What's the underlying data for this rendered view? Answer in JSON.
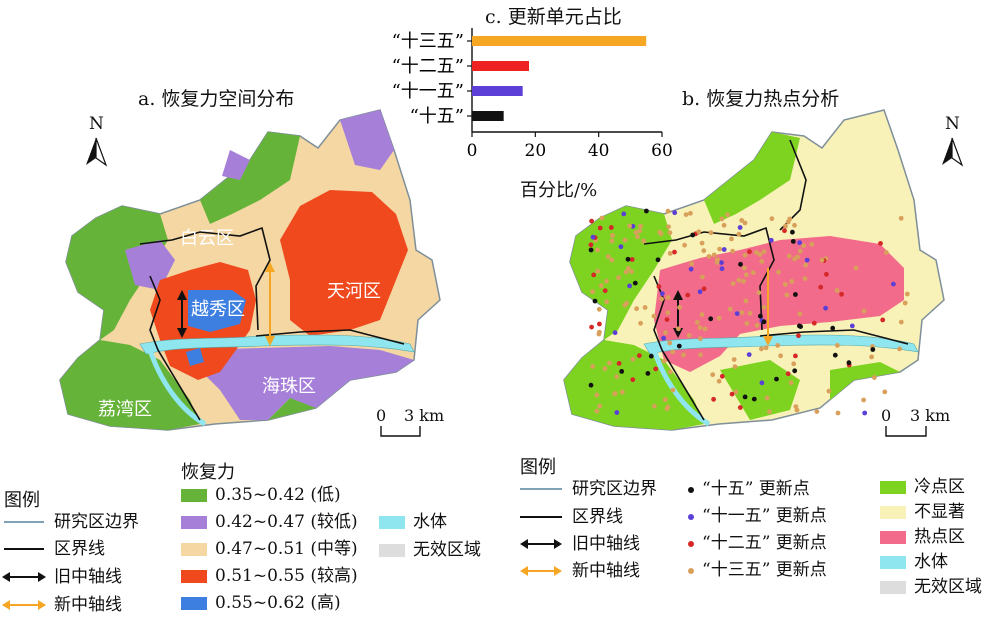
{
  "map_a": {
    "title": "a. 恢复力空间分布",
    "north": "N",
    "districts": {
      "baiyun": "白云区",
      "yuexiu": "越秀区",
      "tianhe": "天河区",
      "haizhu": "海珠区",
      "liwan": "荔湾区"
    },
    "scale": {
      "zero": "0",
      "label": "3 km"
    }
  },
  "map_b": {
    "title": "b. 恢复力热点分析",
    "north": "N",
    "scale": {
      "zero": "0",
      "label": "3 km"
    }
  },
  "chart_data": {
    "type": "bar",
    "orientation": "horizontal",
    "title": "c. 更新单元占比",
    "xlabel": "百分比/%",
    "categories": [
      "“十三五”",
      "“十二五”",
      "“十一五”",
      "“十五”"
    ],
    "values": [
      55,
      18,
      16,
      10
    ],
    "colors": [
      "#F5A623",
      "#EE2222",
      "#5B3FD6",
      "#111111"
    ],
    "xlim": [
      0,
      60
    ],
    "xticks": [
      "0",
      "20",
      "40",
      "60"
    ]
  },
  "legend_left": {
    "header": "图例",
    "items": [
      "研究区边界",
      "区界线",
      "旧中轴线",
      "新中轴线"
    ]
  },
  "legend_resilience": {
    "header": "恢复力",
    "items": [
      {
        "label": "0.35~0.42 (低)",
        "color": "#66B339"
      },
      {
        "label": "0.42~0.47 (较低)",
        "color": "#A67FD9"
      },
      {
        "label": "0.47~0.51 (中等)",
        "color": "#F4D7A3"
      },
      {
        "label": "0.51~0.55 (较高)",
        "color": "#F0491E"
      },
      {
        "label": "0.55~0.62 (高)",
        "color": "#3D7FE0"
      }
    ],
    "extra": [
      {
        "label": "水体",
        "color": "#8FE6EE"
      },
      {
        "label": "无效区域",
        "color": "#DDDDDD"
      }
    ]
  },
  "legend_right": {
    "header": "图例",
    "lines": [
      "研究区边界",
      "区界线",
      "旧中轴线",
      "新中轴线"
    ],
    "points": [
      {
        "label": "“十五” 更新点",
        "color": "#111111"
      },
      {
        "label": "“十一五” 更新点",
        "color": "#5B3FD6"
      },
      {
        "label": "“十二五” 更新点",
        "color": "#D62828"
      },
      {
        "label": "“十三五” 更新点",
        "color": "#D9A05B"
      }
    ],
    "classes": [
      {
        "label": "冷点区",
        "color": "#7ED321"
      },
      {
        "label": "不显著",
        "color": "#F8F1B8"
      },
      {
        "label": "热点区",
        "color": "#F26B8A"
      },
      {
        "label": "水体",
        "color": "#8FE6EE"
      },
      {
        "label": "无效区域",
        "color": "#DDDDDD"
      }
    ]
  }
}
